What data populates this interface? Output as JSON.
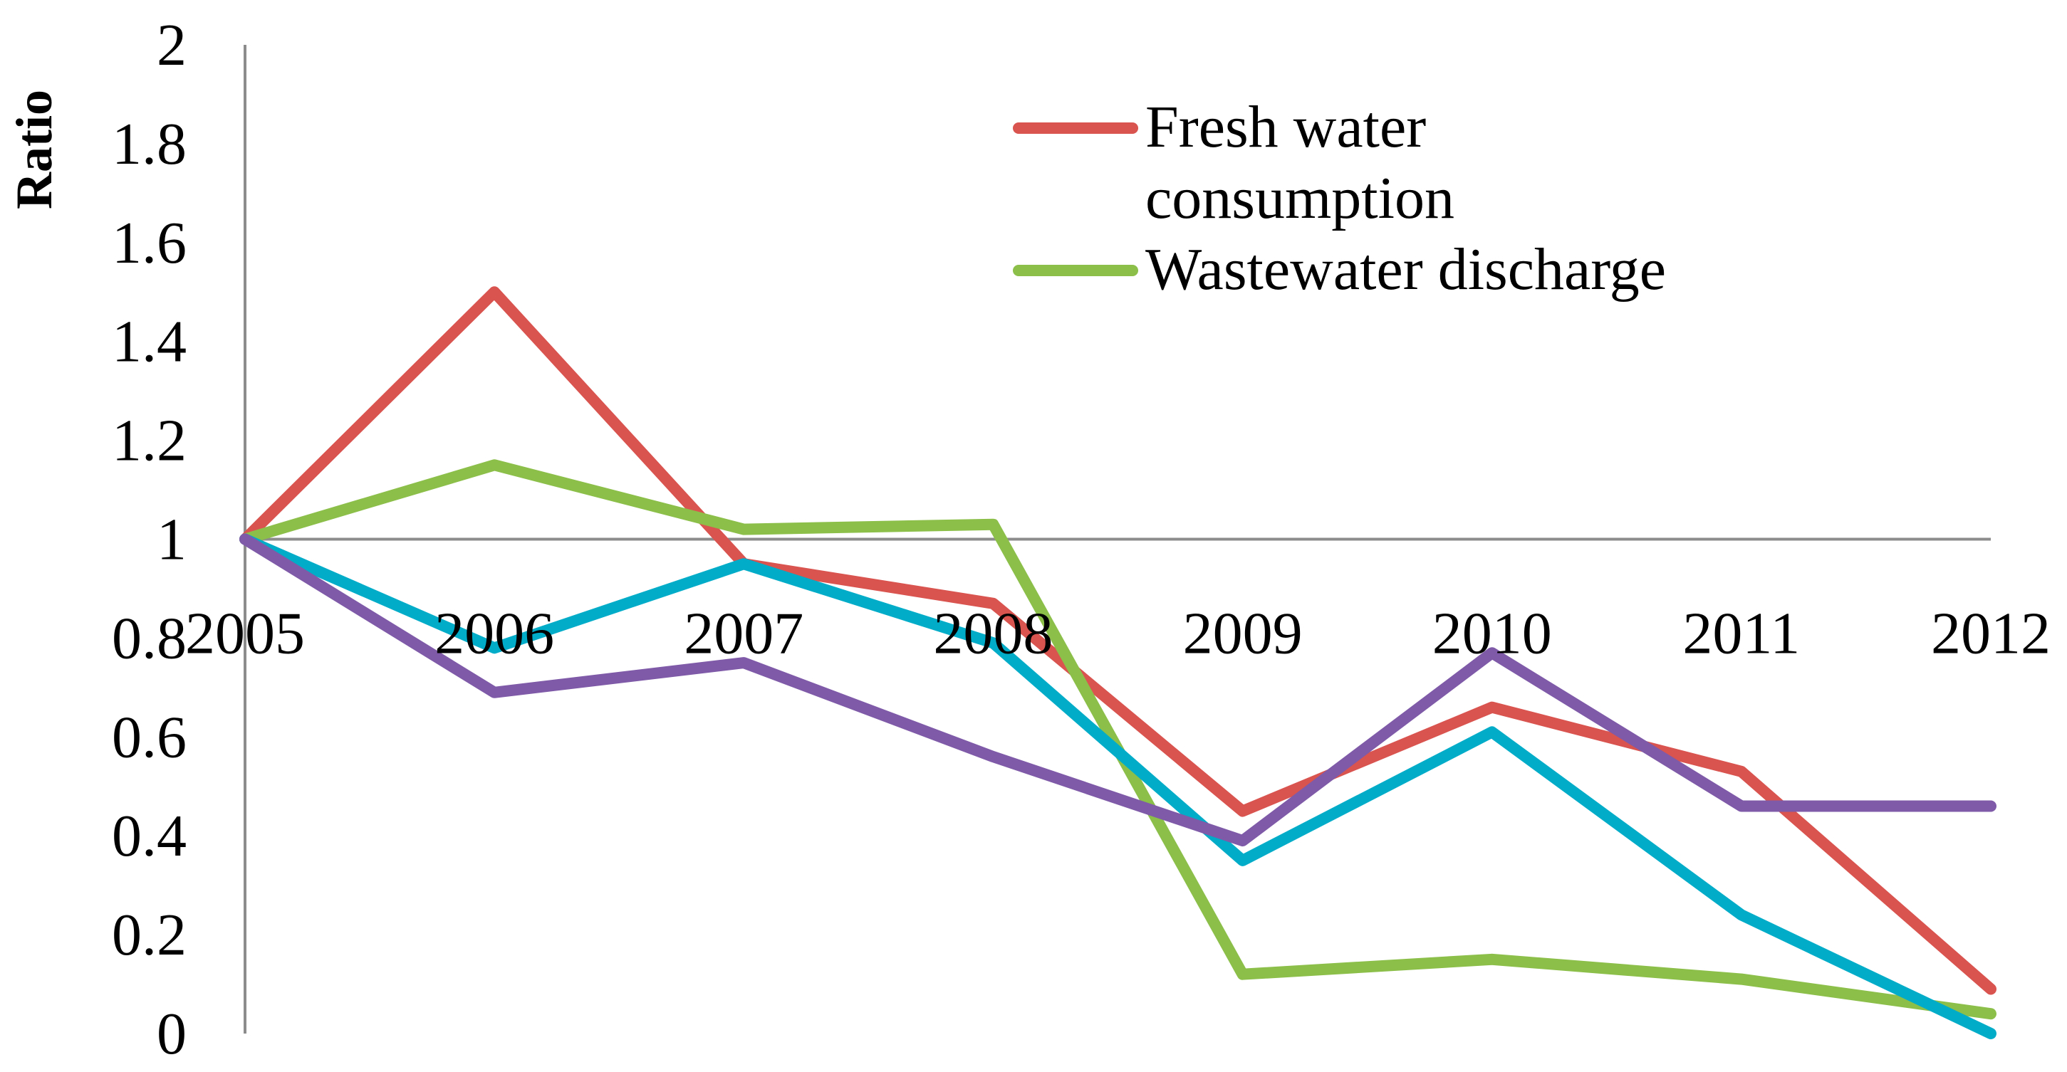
{
  "chart_data": {
    "type": "line",
    "title": "",
    "xlabel": "",
    "ylabel": "Ratio",
    "ylim": [
      0,
      2
    ],
    "yticks": [
      "0",
      "0.2",
      "0.4",
      "0.6",
      "0.8",
      "1",
      "1.2",
      "1.4",
      "1.6",
      "1.8",
      "2"
    ],
    "categories": [
      "2005",
      "2006",
      "2007",
      "2008",
      "2009",
      "2010",
      "2011",
      "2012"
    ],
    "legend_position": "top-right",
    "series": [
      {
        "name": "Fresh water consumption",
        "legend_lines": [
          "Fresh water",
          "consumption"
        ],
        "color": "#D9534F",
        "in_legend": true,
        "values": [
          1.0,
          1.5,
          0.95,
          0.87,
          0.45,
          0.66,
          0.53,
          0.09
        ]
      },
      {
        "name": "Wastewater discharge",
        "legend_lines": [
          "Wastewater discharge"
        ],
        "color": "#8BBF4A",
        "in_legend": true,
        "values": [
          1.0,
          1.15,
          1.02,
          1.03,
          0.12,
          0.15,
          0.11,
          0.04
        ]
      },
      {
        "name": "",
        "color": "#00ACC8",
        "in_legend": false,
        "values": [
          1.0,
          0.78,
          0.95,
          0.79,
          0.35,
          0.61,
          0.24,
          0.0
        ]
      },
      {
        "name": "",
        "color": "#7E5AA8",
        "in_legend": false,
        "values": [
          1.0,
          0.69,
          0.75,
          0.56,
          0.39,
          0.77,
          0.46,
          0.46
        ]
      }
    ]
  }
}
